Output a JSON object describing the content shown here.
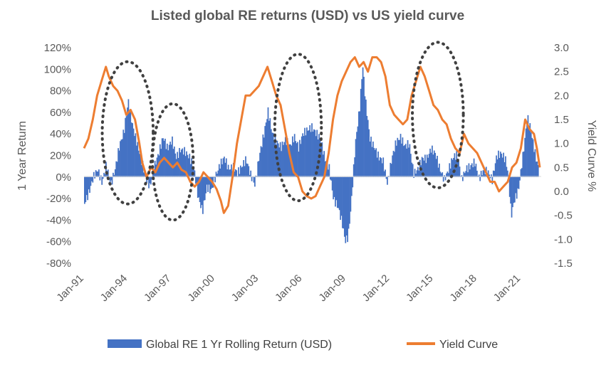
{
  "chart_data": {
    "type": "bar",
    "title": "Listed global RE returns (USD) vs US yield curve",
    "ylabel": "1 Year Return",
    "y2label": "Yield Curve %",
    "ylim": [
      -0.8,
      1.2
    ],
    "y2lim": [
      -1.5,
      3.0
    ],
    "y_ticks": [
      "120%",
      "100%",
      "80%",
      "60%",
      "40%",
      "20%",
      "0%",
      "-20%",
      "-40%",
      "-60%",
      "-80%"
    ],
    "y2_ticks": [
      "3.0",
      "2.5",
      "2.0",
      "1.5",
      "1.0",
      "0.5",
      "0.0",
      "-0.5",
      "-1.0",
      "-1.5"
    ],
    "x_range": [
      1991.0,
      2022.4
    ],
    "x_ticks": [
      {
        "label": "Jan-91",
        "x": 1991
      },
      {
        "label": "Jan-94",
        "x": 1994
      },
      {
        "label": "Jan-97",
        "x": 1997
      },
      {
        "label": "Jan-00",
        "x": 2000
      },
      {
        "label": "Jan-03",
        "x": 2003
      },
      {
        "label": "Jan-06",
        "x": 2006
      },
      {
        "label": "Jan-09",
        "x": 2009
      },
      {
        "label": "Jan-12",
        "x": 2012
      },
      {
        "label": "Jan-15",
        "x": 2015
      },
      {
        "label": "Jan-18",
        "x": 2018
      },
      {
        "label": "Jan-21",
        "x": 2021
      }
    ],
    "series": [
      {
        "name": "Global RE 1 Yr Rolling Return (USD)",
        "type": "bar",
        "color": "#4472C4",
        "axis": "left",
        "points": [
          [
            1991.0,
            -0.22
          ],
          [
            1991.3,
            -0.12
          ],
          [
            1991.6,
            0.02
          ],
          [
            1991.9,
            0.08
          ],
          [
            1992.2,
            -0.06
          ],
          [
            1992.5,
            0.1
          ],
          [
            1992.8,
            -0.1
          ],
          [
            1993.1,
            0.05
          ],
          [
            1993.4,
            0.28
          ],
          [
            1993.7,
            0.42
          ],
          [
            1994.0,
            0.72
          ],
          [
            1994.3,
            0.5
          ],
          [
            1994.6,
            0.34
          ],
          [
            1994.9,
            0.18
          ],
          [
            1995.2,
            0.0
          ],
          [
            1995.5,
            -0.1
          ],
          [
            1995.8,
            0.08
          ],
          [
            1996.1,
            0.2
          ],
          [
            1996.4,
            0.35
          ],
          [
            1996.7,
            0.25
          ],
          [
            1997.0,
            0.35
          ],
          [
            1997.3,
            0.2
          ],
          [
            1997.6,
            0.28
          ],
          [
            1997.9,
            0.26
          ],
          [
            1998.2,
            0.2
          ],
          [
            1998.5,
            0.1
          ],
          [
            1998.8,
            -0.2
          ],
          [
            1999.1,
            -0.34
          ],
          [
            1999.4,
            -0.12
          ],
          [
            1999.7,
            -0.15
          ],
          [
            2000.0,
            0.0
          ],
          [
            2000.3,
            0.12
          ],
          [
            2000.6,
            0.2
          ],
          [
            2000.9,
            0.1
          ],
          [
            2001.2,
            0.12
          ],
          [
            2001.5,
            0.05
          ],
          [
            2001.8,
            0.1
          ],
          [
            2002.1,
            0.15
          ],
          [
            2002.4,
            0.0
          ],
          [
            2002.7,
            -0.1
          ],
          [
            2003.0,
            0.18
          ],
          [
            2003.3,
            0.38
          ],
          [
            2003.6,
            0.62
          ],
          [
            2003.9,
            0.42
          ],
          [
            2004.2,
            0.35
          ],
          [
            2004.5,
            0.3
          ],
          [
            2004.8,
            0.36
          ],
          [
            2005.1,
            0.28
          ],
          [
            2005.4,
            0.36
          ],
          [
            2005.7,
            0.25
          ],
          [
            2006.0,
            0.38
          ],
          [
            2006.3,
            0.42
          ],
          [
            2006.6,
            0.46
          ],
          [
            2006.9,
            0.42
          ],
          [
            2007.2,
            0.38
          ],
          [
            2007.5,
            0.2
          ],
          [
            2007.8,
            0.1
          ],
          [
            2008.1,
            -0.2
          ],
          [
            2008.4,
            -0.28
          ],
          [
            2008.7,
            -0.45
          ],
          [
            2008.9,
            -0.62
          ],
          [
            2009.1,
            -0.58
          ],
          [
            2009.3,
            -0.3
          ],
          [
            2009.6,
            0.3
          ],
          [
            2009.9,
            0.65
          ],
          [
            2010.1,
            1.05
          ],
          [
            2010.3,
            0.72
          ],
          [
            2010.6,
            0.38
          ],
          [
            2010.9,
            0.3
          ],
          [
            2011.2,
            0.2
          ],
          [
            2011.5,
            0.15
          ],
          [
            2011.8,
            -0.08
          ],
          [
            2012.1,
            0.15
          ],
          [
            2012.4,
            0.3
          ],
          [
            2012.7,
            0.35
          ],
          [
            2013.0,
            0.28
          ],
          [
            2013.3,
            0.32
          ],
          [
            2013.6,
            0.05
          ],
          [
            2013.9,
            0.1
          ],
          [
            2014.2,
            0.2
          ],
          [
            2014.5,
            0.18
          ],
          [
            2014.8,
            0.26
          ],
          [
            2015.1,
            0.2
          ],
          [
            2015.4,
            0.05
          ],
          [
            2015.7,
            -0.05
          ],
          [
            2016.0,
            0.05
          ],
          [
            2016.3,
            0.18
          ],
          [
            2016.6,
            0.22
          ],
          [
            2016.9,
            0.0
          ],
          [
            2017.2,
            0.1
          ],
          [
            2017.5,
            0.12
          ],
          [
            2017.8,
            0.15
          ],
          [
            2018.1,
            -0.02
          ],
          [
            2018.4,
            0.05
          ],
          [
            2018.7,
            0.02
          ],
          [
            2019.0,
            -0.05
          ],
          [
            2019.3,
            0.18
          ],
          [
            2019.6,
            0.22
          ],
          [
            2019.9,
            0.18
          ],
          [
            2020.1,
            0.05
          ],
          [
            2020.3,
            -0.34
          ],
          [
            2020.5,
            -0.2
          ],
          [
            2020.8,
            -0.1
          ],
          [
            2021.0,
            0.1
          ],
          [
            2021.2,
            0.3
          ],
          [
            2021.4,
            0.55
          ],
          [
            2021.6,
            0.45
          ],
          [
            2021.8,
            0.3
          ],
          [
            2022.0,
            0.15
          ],
          [
            2022.2,
            0.05
          ]
        ]
      },
      {
        "name": "Yield Curve",
        "type": "line",
        "color": "#ED7D31",
        "axis": "right",
        "points": [
          [
            1991.0,
            0.9
          ],
          [
            1991.3,
            1.1
          ],
          [
            1991.6,
            1.5
          ],
          [
            1991.9,
            2.0
          ],
          [
            1992.2,
            2.3
          ],
          [
            1992.5,
            2.6
          ],
          [
            1992.7,
            2.4
          ],
          [
            1993.0,
            2.2
          ],
          [
            1993.3,
            2.1
          ],
          [
            1993.6,
            1.9
          ],
          [
            1993.9,
            1.6
          ],
          [
            1994.2,
            1.7
          ],
          [
            1994.5,
            1.5
          ],
          [
            1994.8,
            1.0
          ],
          [
            1995.0,
            0.6
          ],
          [
            1995.3,
            0.3
          ],
          [
            1995.6,
            0.5
          ],
          [
            1995.9,
            0.4
          ],
          [
            1996.2,
            0.6
          ],
          [
            1996.5,
            0.7
          ],
          [
            1996.8,
            0.6
          ],
          [
            1997.1,
            0.5
          ],
          [
            1997.4,
            0.6
          ],
          [
            1997.7,
            0.45
          ],
          [
            1998.0,
            0.4
          ],
          [
            1998.3,
            0.2
          ],
          [
            1998.6,
            0.1
          ],
          [
            1998.9,
            0.2
          ],
          [
            1999.2,
            0.4
          ],
          [
            1999.5,
            0.3
          ],
          [
            1999.8,
            0.2
          ],
          [
            2000.1,
            0.05
          ],
          [
            2000.4,
            -0.2
          ],
          [
            2000.6,
            -0.45
          ],
          [
            2000.9,
            -0.3
          ],
          [
            2001.2,
            0.3
          ],
          [
            2001.5,
            1.0
          ],
          [
            2001.8,
            1.5
          ],
          [
            2002.1,
            2.0
          ],
          [
            2002.4,
            2.0
          ],
          [
            2002.7,
            2.1
          ],
          [
            2003.0,
            2.2
          ],
          [
            2003.3,
            2.4
          ],
          [
            2003.6,
            2.6
          ],
          [
            2003.9,
            2.3
          ],
          [
            2004.2,
            2.0
          ],
          [
            2004.5,
            1.8
          ],
          [
            2004.8,
            1.3
          ],
          [
            2005.1,
            0.8
          ],
          [
            2005.4,
            0.4
          ],
          [
            2005.7,
            0.3
          ],
          [
            2006.0,
            0.0
          ],
          [
            2006.3,
            -0.1
          ],
          [
            2006.6,
            -0.15
          ],
          [
            2006.9,
            -0.1
          ],
          [
            2007.2,
            0.1
          ],
          [
            2007.5,
            0.3
          ],
          [
            2007.8,
            0.8
          ],
          [
            2008.1,
            1.5
          ],
          [
            2008.4,
            2.0
          ],
          [
            2008.7,
            2.3
          ],
          [
            2009.0,
            2.5
          ],
          [
            2009.3,
            2.7
          ],
          [
            2009.6,
            2.8
          ],
          [
            2009.9,
            2.6
          ],
          [
            2010.2,
            2.7
          ],
          [
            2010.5,
            2.5
          ],
          [
            2010.8,
            2.8
          ],
          [
            2011.1,
            2.8
          ],
          [
            2011.4,
            2.7
          ],
          [
            2011.7,
            2.4
          ],
          [
            2012.0,
            1.8
          ],
          [
            2012.3,
            1.6
          ],
          [
            2012.6,
            1.5
          ],
          [
            2012.9,
            1.4
          ],
          [
            2013.2,
            1.5
          ],
          [
            2013.5,
            2.0
          ],
          [
            2013.8,
            2.3
          ],
          [
            2014.1,
            2.6
          ],
          [
            2014.4,
            2.4
          ],
          [
            2014.7,
            2.1
          ],
          [
            2015.0,
            1.8
          ],
          [
            2015.3,
            1.7
          ],
          [
            2015.6,
            1.5
          ],
          [
            2015.9,
            1.4
          ],
          [
            2016.2,
            1.1
          ],
          [
            2016.5,
            0.9
          ],
          [
            2016.8,
            0.8
          ],
          [
            2017.1,
            1.2
          ],
          [
            2017.4,
            1.0
          ],
          [
            2017.7,
            0.9
          ],
          [
            2018.0,
            0.8
          ],
          [
            2018.3,
            0.6
          ],
          [
            2018.6,
            0.4
          ],
          [
            2018.9,
            0.2
          ],
          [
            2019.2,
            0.2
          ],
          [
            2019.5,
            0.0
          ],
          [
            2019.8,
            0.1
          ],
          [
            2020.1,
            0.2
          ],
          [
            2020.4,
            0.5
          ],
          [
            2020.7,
            0.6
          ],
          [
            2021.0,
            0.9
          ],
          [
            2021.3,
            1.5
          ],
          [
            2021.6,
            1.3
          ],
          [
            2021.9,
            1.2
          ],
          [
            2022.1,
            0.9
          ],
          [
            2022.3,
            0.5
          ]
        ]
      }
    ],
    "annotations": [
      {
        "type": "dotted-ellipse",
        "center": [
          1994.0,
          0.0
        ],
        "x_halfwidth": 1.75,
        "y_top": 1.07,
        "y_bottom": -0.25
      },
      {
        "type": "dotted-ellipse",
        "center": [
          1997.1,
          0.0
        ],
        "x_halfwidth": 1.4,
        "y_top": 0.68,
        "y_bottom": -0.4
      },
      {
        "type": "dotted-ellipse",
        "center": [
          2005.7,
          0.0
        ],
        "x_halfwidth": 1.6,
        "y_top": 1.14,
        "y_bottom": -0.22
      },
      {
        "type": "dotted-ellipse",
        "center": [
          2015.3,
          0.0
        ],
        "x_halfwidth": 1.75,
        "y_top": 1.25,
        "y_bottom": -0.1
      }
    ],
    "legend": {
      "position": "bottom",
      "entries": [
        "Global RE 1 Yr Rolling Return (USD)",
        "Yield Curve"
      ]
    }
  }
}
